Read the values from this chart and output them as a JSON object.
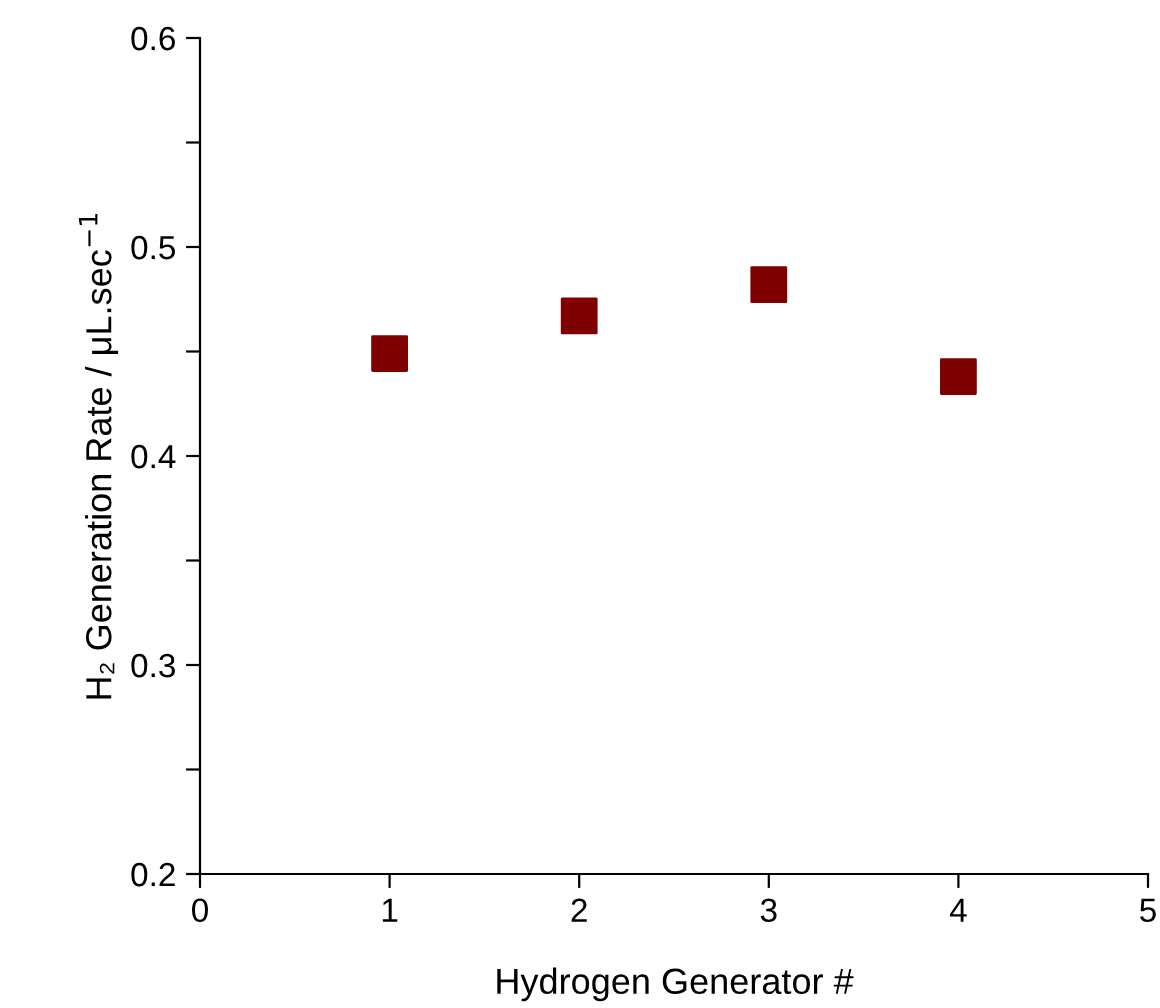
{
  "chart_data": {
    "type": "scatter",
    "xlabel": "Hydrogen Generator #",
    "ylabel": "H₂ Generation Rate / μL.sec$^{−1}$",
    "x": [
      1,
      2,
      3,
      4
    ],
    "series": [
      {
        "color": "#7f0000",
        "values": [
          0.449,
          0.467,
          0.482,
          0.438
        ]
      }
    ],
    "marker": "square",
    "grid": false,
    "legend": false,
    "xlim": [
      0,
      5
    ],
    "xticks": [
      0,
      1,
      2,
      3,
      4,
      5
    ],
    "ylim": [
      0.2,
      0.6
    ],
    "yticks": [
      {
        "value": 0.2,
        "label": "0.2"
      },
      {
        "value": 0.25,
        "label": null
      },
      {
        "value": 0.3,
        "label": "0.3"
      },
      {
        "value": 0.35,
        "label": null
      },
      {
        "value": 0.4,
        "label": "0.4"
      },
      {
        "value": 0.45,
        "label": null
      },
      {
        "value": 0.5,
        "label": "0.5"
      },
      {
        "value": 0.55,
        "label": null
      },
      {
        "value": 0.6,
        "label": "0.6"
      }
    ]
  }
}
